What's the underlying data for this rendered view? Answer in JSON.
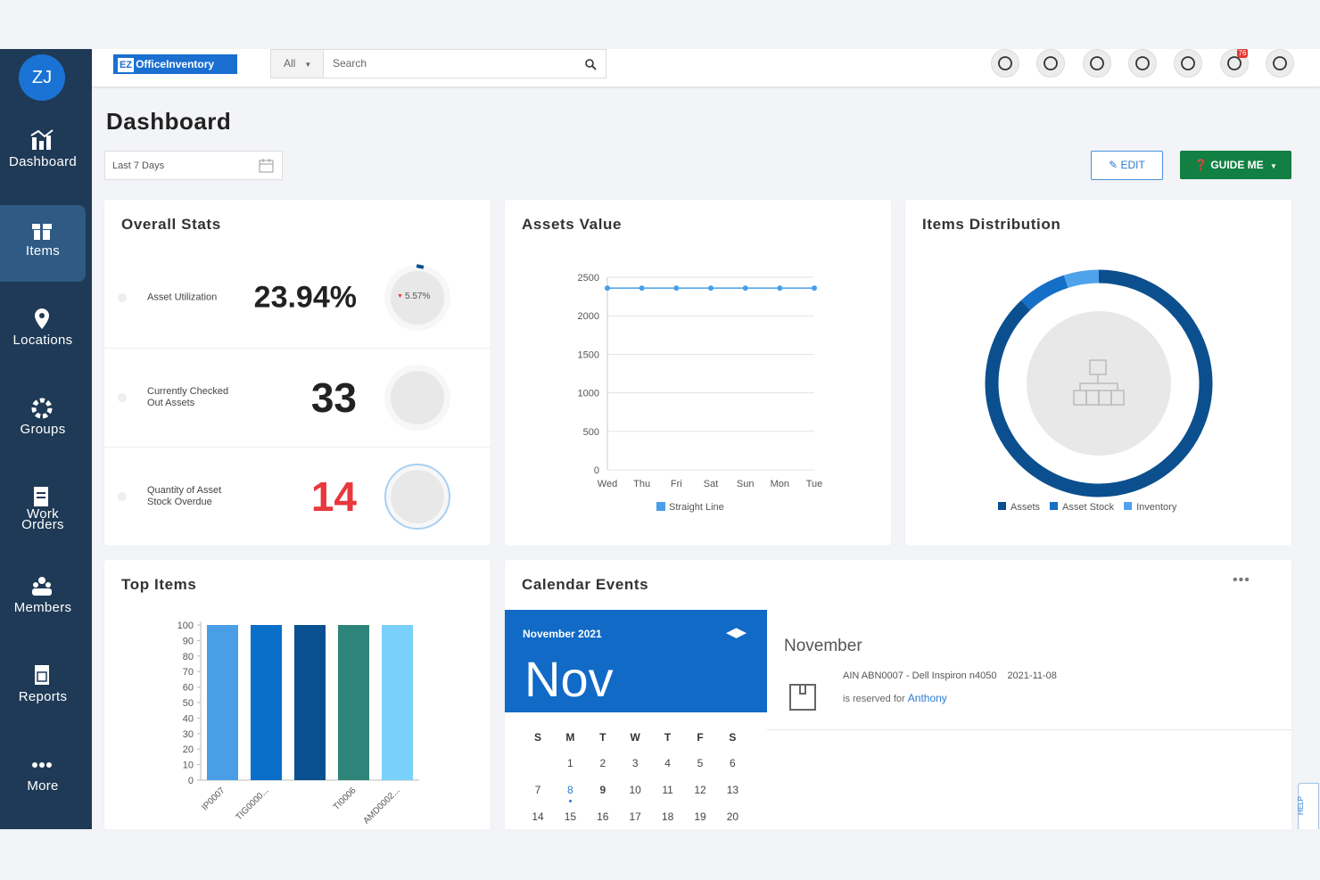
{
  "sidebar": {
    "avatar": "ZJ",
    "nav": [
      "Dashboard",
      "Items",
      "Locations",
      "Groups",
      "Work Orders",
      "Members",
      "Reports",
      "More"
    ],
    "active": 1
  },
  "header": {
    "logo_badge": "EZ",
    "logo_text": "OfficeInventory",
    "search_scope": "All",
    "search_placeholder": "Search",
    "notification_count": 76
  },
  "page": {
    "title": "Dashboard",
    "date_range": "Last 7 Days",
    "edit_button": "EDIT",
    "guide_button": "GUIDE ME"
  },
  "overall_stats": {
    "title": "Overall Stats",
    "rows": [
      {
        "label": "Asset Utilization",
        "value": "23.94%",
        "change": "5.57%"
      },
      {
        "label": "Currently Checked Out Assets",
        "value": "33"
      },
      {
        "label": "Quantity of Asset Stock Overdue",
        "value": "14"
      }
    ]
  },
  "chart_data": [
    {
      "type": "line",
      "title": "Assets Value",
      "categories": [
        "Wed",
        "Thu",
        "Fri",
        "Sat",
        "Sun",
        "Mon",
        "Tue"
      ],
      "series": [
        {
          "name": "Straight Line",
          "color": "#4a9ee8",
          "values": [
            2360,
            2360,
            2360,
            2360,
            2360,
            2360,
            2360
          ]
        }
      ],
      "ylim": [
        0,
        2500
      ],
      "yticks": [
        0,
        500,
        1000,
        1500,
        2000,
        2500
      ],
      "grid": true
    },
    {
      "type": "donut",
      "title": "Items Distribution",
      "series": [
        {
          "name": "Assets",
          "color": "#0b4f8e",
          "value": 88
        },
        {
          "name": "Asset Stock",
          "color": "#166fc7",
          "value": 7
        },
        {
          "name": "Inventory",
          "color": "#4fa3ea",
          "value": 5
        }
      ]
    },
    {
      "type": "bar",
      "title": "Top Items",
      "categories": [
        "IP0007",
        "TIG0000...",
        null,
        "TI0006",
        "AMD0002..."
      ],
      "values": [
        100,
        100,
        100,
        100,
        100
      ],
      "colors": [
        "#4a9ee8",
        "#0a6fc8",
        "#0a4f8f",
        "#2e8478",
        "#79d0fb"
      ],
      "ylim": [
        0,
        100
      ],
      "yticks": [
        0,
        10,
        20,
        30,
        40,
        50,
        60,
        70,
        80,
        90,
        100
      ]
    }
  ],
  "calendar": {
    "title": "Calendar Events",
    "month_label": "November 2021",
    "month_short": "Nov",
    "weekdays": [
      "S",
      "M",
      "T",
      "W",
      "T",
      "F",
      "S"
    ],
    "days": [
      1,
      2,
      3,
      4,
      5,
      6,
      7,
      8,
      9,
      10,
      11,
      12,
      13,
      14,
      15,
      16,
      17,
      18,
      19,
      20
    ],
    "first_weekday": 1,
    "selected": 8,
    "today": 9,
    "panel_month": "November",
    "events": [
      {
        "text": "AIN ABN0007 - Dell Inspiron n4050",
        "date": "2021-11-08",
        "reserved_text": "is reserved for",
        "person": "Anthony"
      }
    ]
  },
  "help": "HELP"
}
